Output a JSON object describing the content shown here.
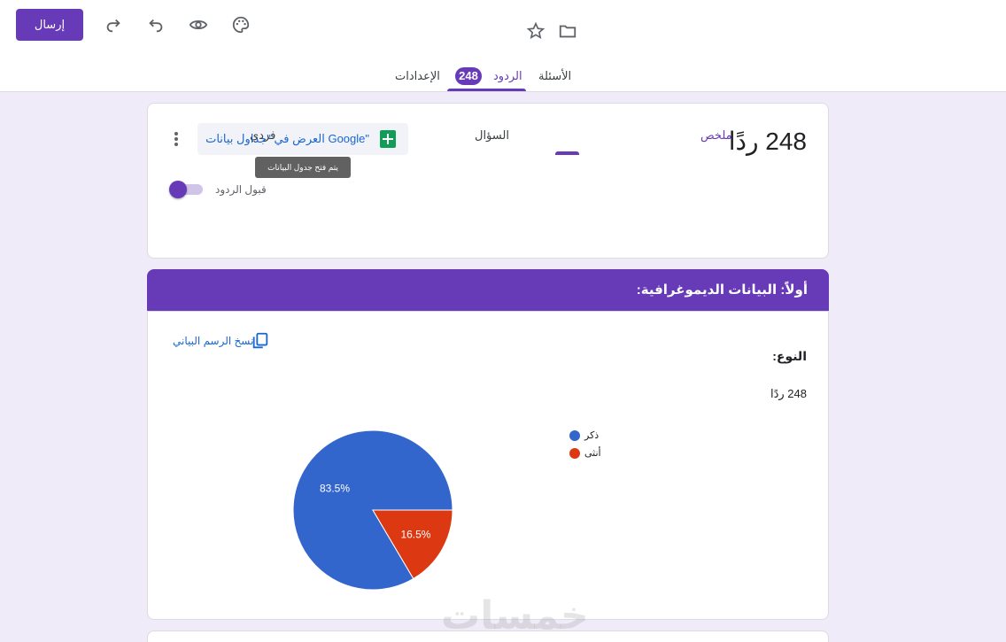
{
  "toolbar": {
    "send_label": "إرسال",
    "icons": [
      "palette-icon",
      "preview-icon",
      "undo-icon",
      "redo-icon",
      "folder-icon",
      "star-icon"
    ]
  },
  "top_tabs": {
    "questions": "الأسئلة",
    "responses": "الردود",
    "responses_count": "248",
    "settings": "الإعدادات"
  },
  "responses_card": {
    "count_title": "248 ردًا",
    "sheets_label": "العرض في \"جداول بيانات Google\"",
    "tooltip": "يتم فتح جدول البيانات المرتبط.",
    "accepting_label": "قبول الردود",
    "accepting": true,
    "subtabs": {
      "summary": "ملخص",
      "question": "السؤال",
      "individual": "فردي"
    }
  },
  "section": {
    "title": "أولاً: البيانات الديموغرافية:"
  },
  "question": {
    "copy_chart": "نسخ الرسم البياني",
    "title": "النوع:",
    "responses": "248 ردًا"
  },
  "chart_data": {
    "type": "pie",
    "categories": [
      "ذكر",
      "أنثى"
    ],
    "values": [
      83.5,
      16.5
    ],
    "labels": [
      "83.5%",
      "16.5%"
    ],
    "colors": [
      "#3366cc",
      "#dc3912"
    ],
    "legend_position": "right"
  },
  "watermark": "خمسات",
  "colors": {
    "accent": "#673ab7",
    "link": "#1967d2",
    "sheets": "#0f9d58"
  }
}
